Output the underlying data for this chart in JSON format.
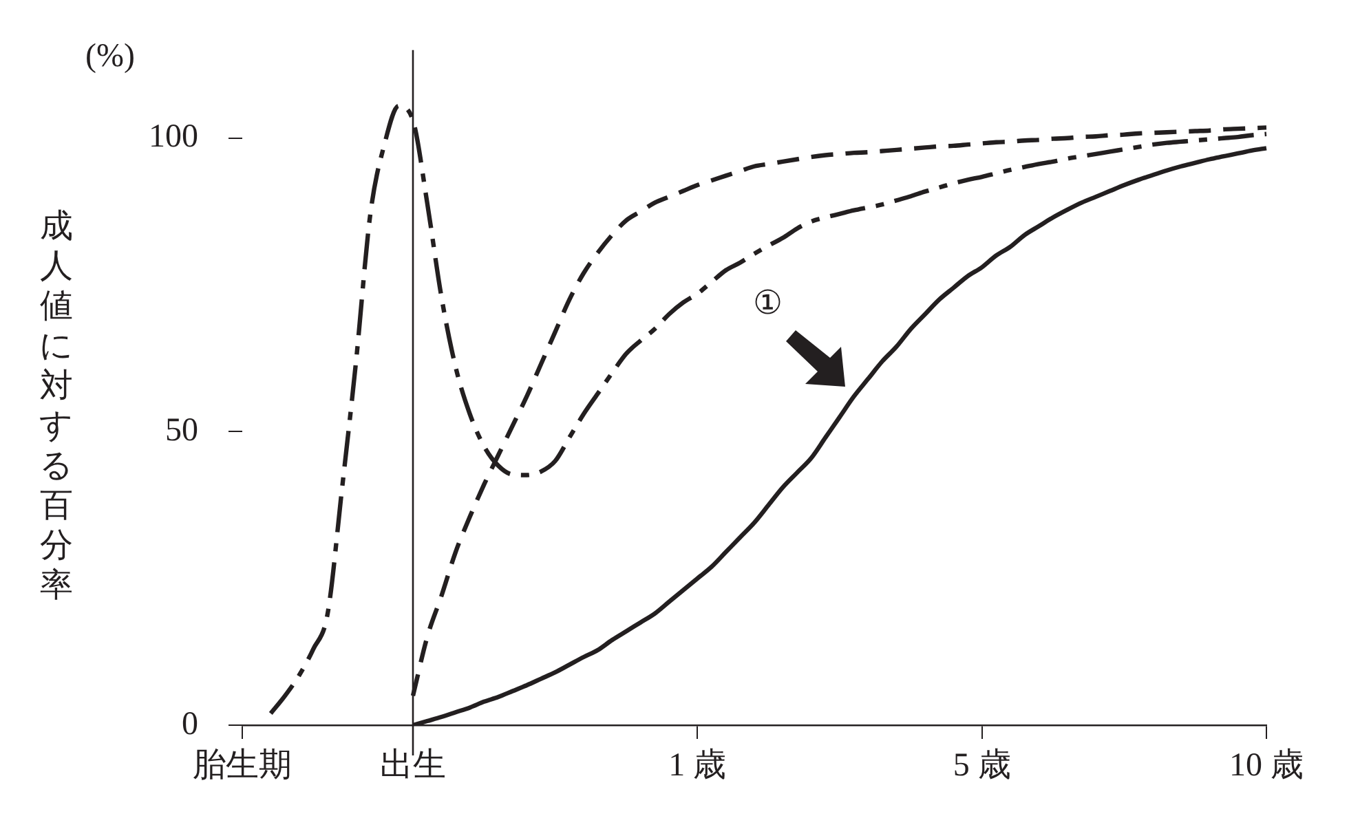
{
  "chart_data": {
    "type": "line",
    "ylabel": "成人値に対する百分率",
    "annotations": [
      "(%)",
      "①"
    ],
    "categories": [
      "胎生期",
      null,
      null,
      null,
      null,
      null,
      null,
      null,
      null,
      null,
      null,
      null,
      "出生",
      null,
      null,
      null,
      null,
      null,
      null,
      null,
      null,
      null,
      null,
      null,
      null,
      null,
      null,
      null,
      null,
      null,
      null,
      null,
      "1 歳",
      null,
      null,
      null,
      null,
      null,
      null,
      null,
      null,
      null,
      null,
      null,
      null,
      null,
      null,
      null,
      null,
      null,
      null,
      null,
      "5 歳",
      null,
      null,
      null,
      null,
      null,
      null,
      null,
      null,
      null,
      null,
      null,
      null,
      null,
      null,
      null,
      null,
      null,
      null,
      null,
      "10 歳"
    ],
    "ylim": [
      0,
      115
    ],
    "yticks": [
      0,
      50,
      100
    ],
    "grid": false,
    "legend": false,
    "marker": "none",
    "ref_lines": [
      {
        "axis": "x",
        "value": "出生",
        "color": "#231f20",
        "line_style": "solid"
      }
    ],
    "series": [
      {
        "color": "#231f20",
        "line_style": "dashdot",
        "values": [
          null,
          null,
          2,
          5,
          8.5,
          13,
          19,
          40,
          62,
          87,
          99,
          105.5,
          103,
          89,
          73,
          61,
          53,
          47.5,
          44.2,
          42.7,
          42.6,
          43.2,
          45,
          49,
          53,
          56.5,
          60,
          63.3,
          65.5,
          67.5,
          70,
          72,
          73.5,
          75.5,
          77.5,
          78.8,
          80.3,
          81.7,
          83,
          84.6,
          85.8,
          86.5,
          87.1,
          87.7,
          88.2,
          88.7,
          89.4,
          90.1,
          90.9,
          91.6,
          92.3,
          92.9,
          93.4,
          94,
          94.6,
          95.1,
          95.6,
          96,
          96.5,
          96.9,
          97.3,
          97.7,
          98.1,
          98.5,
          98.9,
          99.2,
          99.4,
          99.6,
          99.8,
          100,
          100.2,
          100.5,
          100.7
        ]
      },
      {
        "color": "#231f20",
        "line_style": "dashed",
        "values": [
          null,
          null,
          null,
          null,
          null,
          null,
          null,
          null,
          null,
          null,
          null,
          null,
          5,
          15,
          22,
          29.5,
          35.5,
          41,
          46,
          51,
          56,
          61.5,
          67,
          72.5,
          77,
          80.5,
          83.5,
          86,
          87.5,
          89,
          90,
          91,
          92,
          92.8,
          93.6,
          94.4,
          95.2,
          95.6,
          96,
          96.4,
          96.8,
          97.1,
          97.3,
          97.5,
          97.6,
          97.8,
          98,
          98.2,
          98.4,
          98.6,
          98.7,
          98.9,
          99.1,
          99.3,
          99.4,
          99.6,
          99.7,
          99.9,
          100,
          100.2,
          100.3,
          100.5,
          100.6,
          100.8,
          100.9,
          101,
          101.1,
          101.2,
          101.3,
          101.5,
          101.6,
          101.7,
          101.8
        ]
      },
      {
        "color": "#231f20",
        "line_style": "solid",
        "values": [
          null,
          null,
          null,
          null,
          null,
          null,
          null,
          null,
          null,
          null,
          null,
          null,
          0,
          0.7,
          1.4,
          2.2,
          3,
          4,
          4.8,
          5.8,
          6.8,
          7.9,
          9,
          10.3,
          11.6,
          12.8,
          14.5,
          16,
          17.5,
          19,
          21,
          23,
          25,
          27,
          29.5,
          32,
          34.5,
          37.5,
          40.5,
          43,
          45.5,
          49,
          52.5,
          56,
          59,
          62,
          64.5,
          67.5,
          70,
          72.5,
          74.5,
          76.5,
          78,
          80,
          81.5,
          83.5,
          85,
          86.5,
          87.8,
          89,
          90,
          91,
          92,
          92.9,
          93.7,
          94.5,
          95.2,
          95.8,
          96.4,
          96.9,
          97.4,
          97.9,
          98.3
        ]
      }
    ]
  }
}
